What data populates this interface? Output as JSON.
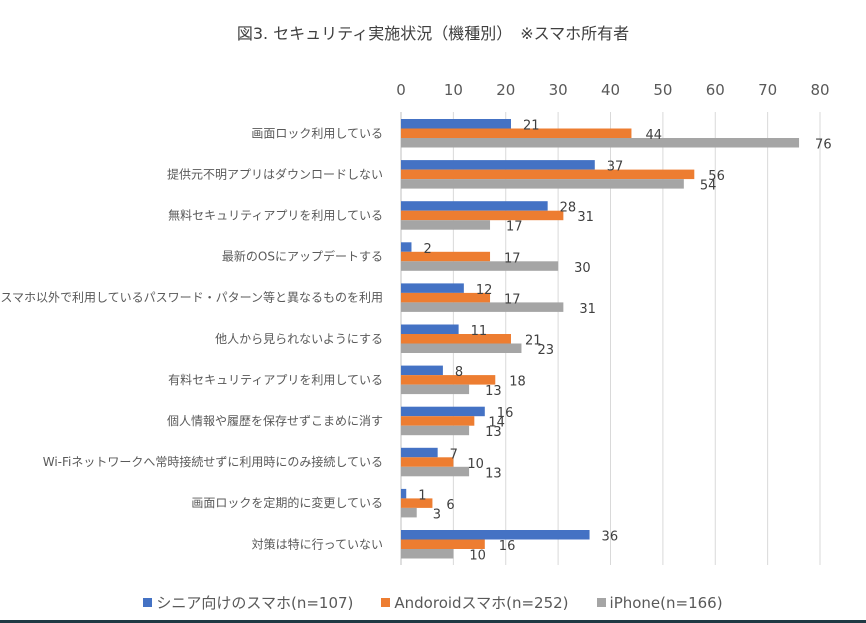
{
  "chart_data": {
    "type": "bar",
    "orientation": "horizontal",
    "title": "図3. セキュリティ実施状況（機種別）　※スマホ所有者",
    "xlabel": "",
    "ylabel": "",
    "xlim": [
      0,
      80
    ],
    "xticks": [
      "0",
      "10",
      "20",
      "30",
      "40",
      "50",
      "60",
      "70",
      "80"
    ],
    "grid": true,
    "legend_position": "bottom",
    "categories": [
      "画面ロック利用している",
      "提供元不明アプリはダウンロードしない",
      "無料セキュリティアプリを利用している",
      "最新のOSにアップデートする",
      "スマホ以外で利用しているパスワード・パターン等と異なるものを利用",
      "他人から見られないようにする",
      "有料セキュリティアプリを利用している",
      "個人情報や履歴を保存せずこまめに消す",
      "Wi-Fiネットワークへ常時接続せずに利用時にのみ接続している",
      "画面ロックを定期的に変更している",
      "対策は特に行っていない"
    ],
    "series": [
      {
        "name": "シニア向けのスマホ(n=107)",
        "color": "#4472c4",
        "values": [
          21,
          37,
          28,
          2,
          12,
          11,
          8,
          16,
          7,
          1,
          36
        ]
      },
      {
        "name": "Andoroidスマホ(n=252)",
        "color": "#ed7d31",
        "values": [
          44,
          56,
          31,
          17,
          17,
          21,
          18,
          14,
          10,
          6,
          16
        ]
      },
      {
        "name": "iPhone(n=166)",
        "color": "#a5a5a5",
        "values": [
          76,
          54,
          17,
          30,
          31,
          23,
          13,
          13,
          13,
          3,
          10
        ]
      }
    ]
  }
}
